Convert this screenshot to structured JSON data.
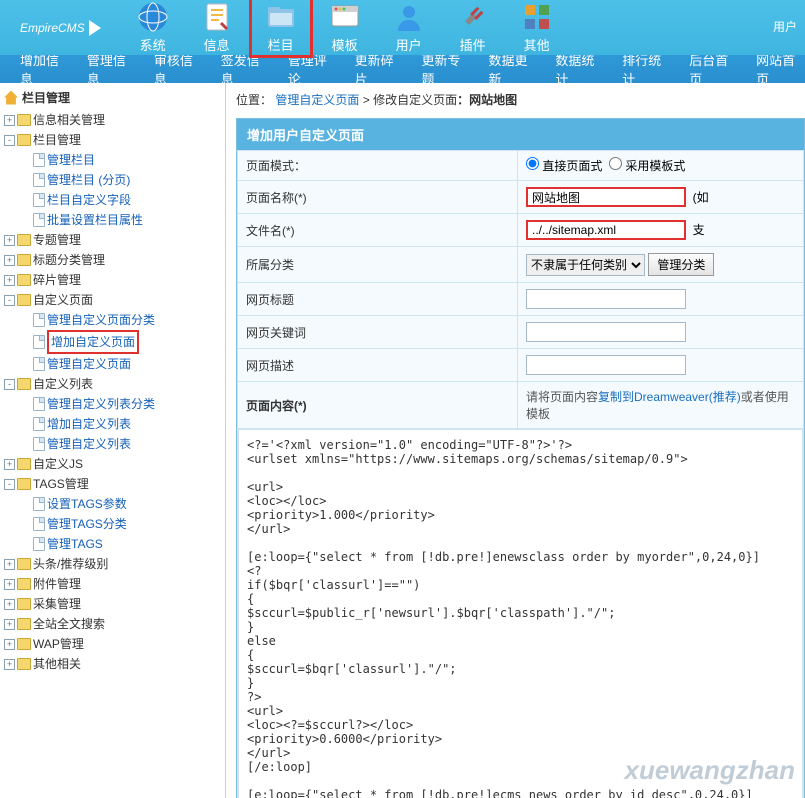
{
  "logo": "EmpireCMS",
  "topnav": [
    {
      "label": "系统",
      "icon": "globe"
    },
    {
      "label": "信息",
      "icon": "doc"
    },
    {
      "label": "栏目",
      "icon": "folder",
      "active": true
    },
    {
      "label": "模板",
      "icon": "window"
    },
    {
      "label": "用户",
      "icon": "user"
    },
    {
      "label": "插件",
      "icon": "plug"
    },
    {
      "label": "其他",
      "icon": "grid"
    }
  ],
  "top_right": "用户",
  "subnav": [
    "增加信息",
    "管理信息",
    "审核信息",
    "签发信息",
    "管理评论",
    "更新碎片",
    "更新专题",
    "数据更新",
    "数据统计",
    "排行统计",
    "后台首页",
    "网站首页"
  ],
  "side_title": "栏目管理",
  "tree": [
    {
      "pm": "+",
      "icon": "fold",
      "label": "信息相关管理"
    },
    {
      "pm": "-",
      "icon": "fold",
      "label": "栏目管理",
      "children": [
        {
          "icon": "file",
          "label": "管理栏目",
          "link": true
        },
        {
          "icon": "file",
          "label": "管理栏目 (分页)",
          "link": true
        },
        {
          "icon": "file",
          "label": "栏目自定义字段",
          "link": true
        },
        {
          "icon": "file",
          "label": "批量设置栏目属性",
          "link": true
        }
      ]
    },
    {
      "pm": "+",
      "icon": "fold",
      "label": "专题管理"
    },
    {
      "pm": "+",
      "icon": "fold",
      "label": "标题分类管理"
    },
    {
      "pm": "+",
      "icon": "fold",
      "label": "碎片管理"
    },
    {
      "pm": "-",
      "icon": "fold",
      "label": "自定义页面",
      "children": [
        {
          "icon": "file",
          "label": "管理自定义页面分类",
          "link": true
        },
        {
          "icon": "file",
          "label": "增加自定义页面",
          "link": true,
          "highlight": true
        },
        {
          "icon": "file",
          "label": "管理自定义页面",
          "link": true
        }
      ]
    },
    {
      "pm": "-",
      "icon": "fold",
      "label": "自定义列表",
      "children": [
        {
          "icon": "file",
          "label": "管理自定义列表分类",
          "link": true
        },
        {
          "icon": "file",
          "label": "增加自定义列表",
          "link": true
        },
        {
          "icon": "file",
          "label": "管理自定义列表",
          "link": true
        }
      ]
    },
    {
      "pm": "+",
      "icon": "fold",
      "label": "自定义JS"
    },
    {
      "pm": "-",
      "icon": "fold",
      "label": "TAGS管理",
      "children": [
        {
          "icon": "file",
          "label": "设置TAGS参数",
          "link": true
        },
        {
          "icon": "file",
          "label": "管理TAGS分类",
          "link": true
        },
        {
          "icon": "file",
          "label": "管理TAGS",
          "link": true
        }
      ]
    },
    {
      "pm": "+",
      "icon": "fold",
      "label": "头条/推荐级别"
    },
    {
      "pm": "+",
      "icon": "fold",
      "label": "附件管理"
    },
    {
      "pm": "+",
      "icon": "fold",
      "label": "采集管理"
    },
    {
      "pm": "+",
      "icon": "fold",
      "label": "全站全文搜索"
    },
    {
      "pm": "+",
      "icon": "fold",
      "label": "WAP管理"
    },
    {
      "pm": "+",
      "icon": "fold",
      "label": "其他相关"
    }
  ],
  "breadcrumb": {
    "prefix": "位置：",
    "a1": "管理自定义页面",
    "sep": " > ",
    "a2": "修改自定义页面",
    "tail": "：网站地图"
  },
  "panel_title": "增加用户自定义页面",
  "form": {
    "mode_label": "页面模式：",
    "mode_opt1": "直接页面式",
    "mode_opt2": "采用模板式",
    "name_label": "页面名称(*)",
    "name_value": "网站地图",
    "name_tail": "(如",
    "file_label": "文件名(*)",
    "file_value": "../../sitemap.xml",
    "file_tail": "支",
    "cat_label": "所属分类",
    "cat_select": "不隶属于任何类别",
    "cat_btn": "管理分类",
    "title_label": "网页标题",
    "title_value": "",
    "kw_label": "网页关键词",
    "kw_value": "",
    "desc_label": "网页描述",
    "desc_value": "",
    "content_label": "页面内容(*)",
    "content_note_pre": "请将页面内容",
    "content_note_link": "复制到Dreamweaver(推荐)",
    "content_note_post": "或者使用模板"
  },
  "code": "<?='<?xml version=\"1.0\" encoding=\"UTF-8\"?>'?>\n<urlset xmlns=\"https://www.sitemaps.org/schemas/sitemap/0.9\">\n\n<url>\n<loc></loc>\n<priority>1.000</priority>\n</url>\n\n[e:loop={\"select * from [!db.pre!]enewsclass order by myorder\",0,24,0}]\n<?\nif($bqr['classurl']==\"\")\n{\n$sccurl=$public_r['newsurl'].$bqr['classpath'].\"/\";\n}\nelse\n{\n$sccurl=$bqr['classurl'].\"/\";\n}\n?>\n<url>\n<loc><?=$sccurl?></loc>\n<priority>0.6000</priority>\n</url>\n[/e:loop]\n\n[e:loop={\"select * from [!db.pre!]ecms_news order by id desc\",0,24,0}]\n<url>\n<loc><?=$bqsr[titleurl]?></loc>",
  "watermark": "xuewangzhan"
}
